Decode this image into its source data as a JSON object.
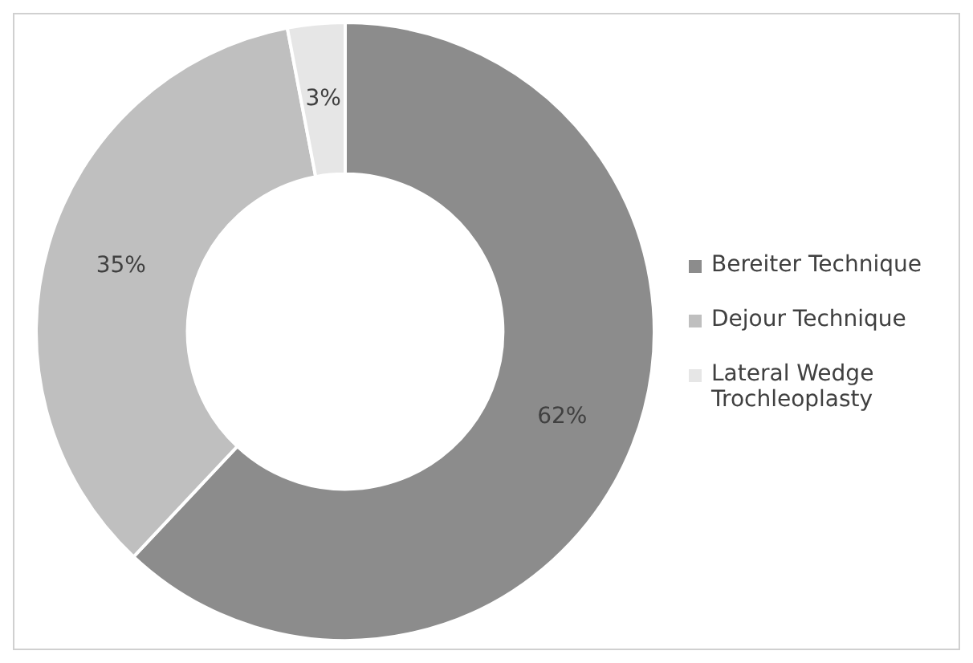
{
  "chart_data": {
    "type": "donut",
    "categories": [
      "Bereiter Technique",
      "Dejour Technique",
      "Lateral Wedge Trochleoplasty"
    ],
    "values": [
      62,
      35,
      3
    ],
    "colors": [
      "#8c8c8c",
      "#bfbfbf",
      "#e6e6e6"
    ],
    "value_labels": [
      "62%",
      "35%",
      "3%"
    ],
    "legend": "right"
  }
}
